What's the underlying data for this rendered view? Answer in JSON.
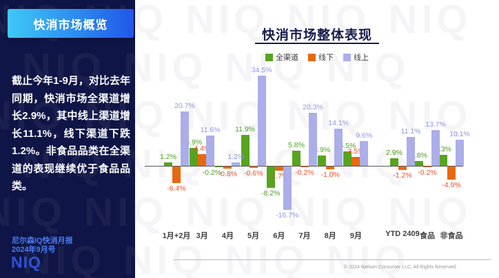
{
  "watermark": "NIQ",
  "sidebar": {
    "header": "快消市场概览",
    "body": "截止今年1-9月，对比去年同期，快消市场全渠道增长2.9%，其中线上渠道增长11.1%，线下渠道下跌1.2%。非食品品类在全渠道的表现继续优于食品品类。",
    "report_line1": "尼尔森IQ快消月报",
    "report_line2": "2024年9月号",
    "logo": "NIQ"
  },
  "chart_data": {
    "type": "bar",
    "title": "快消市场整体表现",
    "categories": [
      "1月+2月",
      "3月",
      "4月",
      "5月",
      "6月",
      "7月",
      "8月",
      "9月",
      "YTD 2409",
      "食品",
      "非食品"
    ],
    "series": [
      {
        "name": "全渠道",
        "color": "#57A41F",
        "label_color": "#4FA021",
        "values": [
          1.2,
          6.9,
          -0.2,
          11.9,
          -8.2,
          5.8,
          3.9,
          5.5,
          2.9,
          1.8,
          4.3
        ]
      },
      {
        "name": "线下",
        "color": "#E8680F",
        "label_color": "#E8512B",
        "values": [
          -6.4,
          4.4,
          -0.8,
          -0.6,
          -1.7,
          -0.2,
          -1.0,
          3.5,
          -1.2,
          -0.2,
          -4.9
        ]
      },
      {
        "name": "线上",
        "color": "#ABAEE8",
        "label_color": "#8F96E2",
        "values": [
          20.7,
          11.6,
          1.2,
          34.5,
          -16.7,
          20.3,
          14.1,
          9.6,
          11.1,
          13.7,
          10.1
        ]
      }
    ],
    "ylim": [
      -18,
      36
    ],
    "grid": false,
    "legend_position": "top",
    "value_label_format": "one_decimal_percent"
  },
  "footer": {
    "copyright": "© 2024 Nielsen Consumer LLC. All Rights Reserved."
  }
}
